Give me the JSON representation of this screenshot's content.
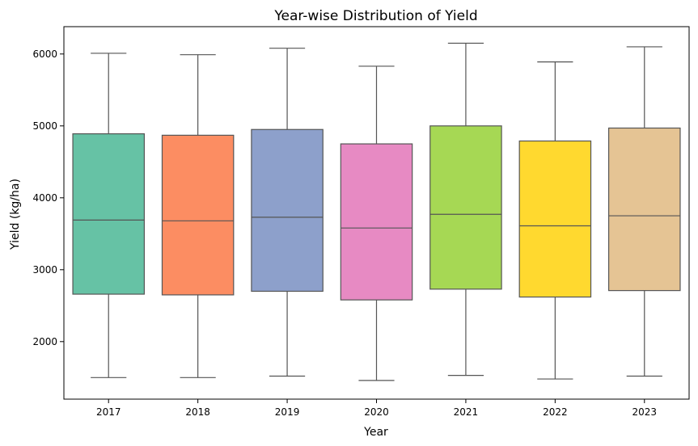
{
  "chart_data": {
    "type": "box",
    "title": "Year-wise Distribution of Yield",
    "xlabel": "Year",
    "ylabel": "Yield (kg/ha)",
    "ylim": [
      1200,
      6380
    ],
    "yticks": [
      "2000",
      "3000",
      "4000",
      "5000",
      "6000"
    ],
    "categories": [
      "2017",
      "2018",
      "2019",
      "2020",
      "2021",
      "2022",
      "2023"
    ],
    "colors": [
      "#66c2a5",
      "#fc8d62",
      "#8da0cb",
      "#e78ac3",
      "#a6d854",
      "#ffd92f",
      "#e5c494"
    ],
    "boxes": [
      {
        "min": 1500,
        "q1": 2660,
        "median": 3690,
        "q3": 4890,
        "max": 6010
      },
      {
        "min": 1500,
        "q1": 2650,
        "median": 3680,
        "q3": 4870,
        "max": 5990
      },
      {
        "min": 1520,
        "q1": 2700,
        "median": 3730,
        "q3": 4950,
        "max": 6080
      },
      {
        "min": 1460,
        "q1": 2580,
        "median": 3580,
        "q3": 4750,
        "max": 5830
      },
      {
        "min": 1530,
        "q1": 2730,
        "median": 3770,
        "q3": 5000,
        "max": 6150
      },
      {
        "min": 1480,
        "q1": 2620,
        "median": 3610,
        "q3": 4790,
        "max": 5890
      },
      {
        "min": 1520,
        "q1": 2710,
        "median": 3750,
        "q3": 4970,
        "max": 6100
      }
    ],
    "grid": false,
    "legend": "none"
  }
}
